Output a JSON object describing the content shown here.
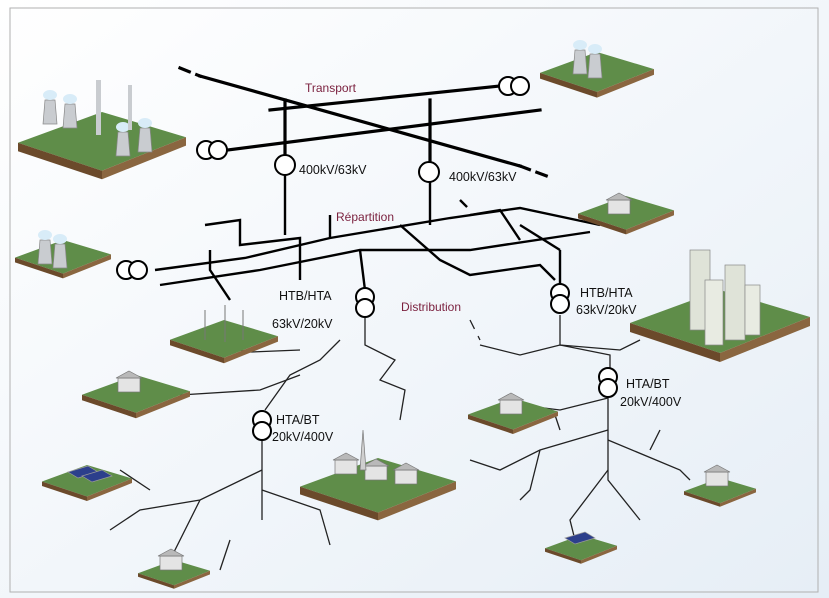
{
  "levels": {
    "transport": "Transport",
    "repartition": "Répartition",
    "distribution": "Distribution"
  },
  "transformers": [
    {
      "lines": [
        "400kV/63kV"
      ]
    },
    {
      "lines": [
        "400kV/63kV"
      ]
    },
    {
      "lines": [
        "HTB/HTA",
        "63kV/20kV"
      ]
    },
    {
      "lines": [
        "HTB/HTA",
        "63kV/20kV"
      ]
    },
    {
      "lines": [
        "HTA/BT",
        "20kV/400V"
      ]
    },
    {
      "lines": [
        "HTA/BT",
        "20kV/400V"
      ]
    }
  ]
}
